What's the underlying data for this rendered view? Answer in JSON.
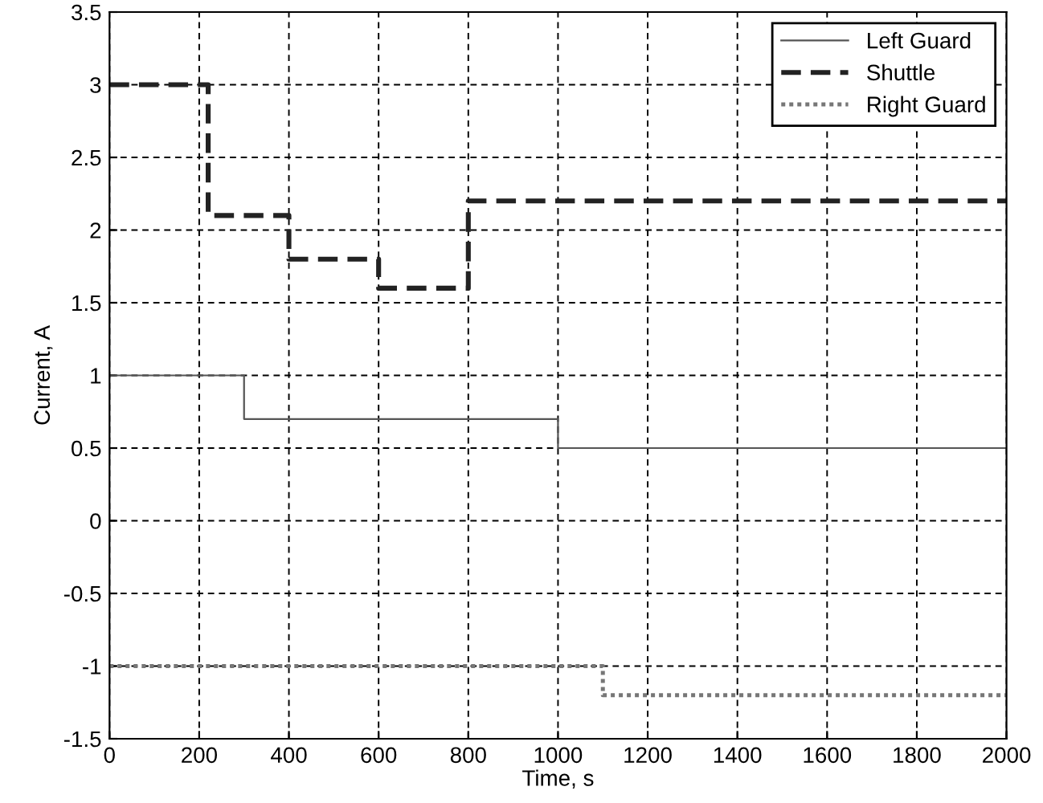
{
  "chart_data": {
    "type": "step",
    "xlabel": "Time, s",
    "ylabel": "Current, A",
    "xlim": [
      0,
      2000
    ],
    "ylim": [
      -1.5,
      3.5
    ],
    "xticks": [
      0,
      200,
      400,
      600,
      800,
      1000,
      1200,
      1400,
      1600,
      1800,
      2000
    ],
    "yticks": [
      -1.5,
      -1,
      -0.5,
      0,
      0.5,
      1,
      1.5,
      2,
      2.5,
      3,
      3.5
    ],
    "grid": true,
    "legend": "top right",
    "series": [
      {
        "name": "Left Guard",
        "color": "#555555",
        "line_style": "solid",
        "x": [
          0,
          300,
          1000,
          2000
        ],
        "values": [
          1,
          0.7,
          0.5,
          0.5
        ]
      },
      {
        "name": "Shuttle",
        "color": "#222222",
        "line_style": "dashed",
        "x": [
          0,
          220,
          400,
          600,
          800,
          2000
        ],
        "values": [
          3,
          2.1,
          1.8,
          1.6,
          2.2,
          2.2
        ]
      },
      {
        "name": "Right Guard",
        "color": "#777777",
        "line_style": "dotted",
        "x": [
          0,
          1100,
          2000
        ],
        "values": [
          -1,
          -1.2,
          -1.2
        ]
      }
    ]
  }
}
